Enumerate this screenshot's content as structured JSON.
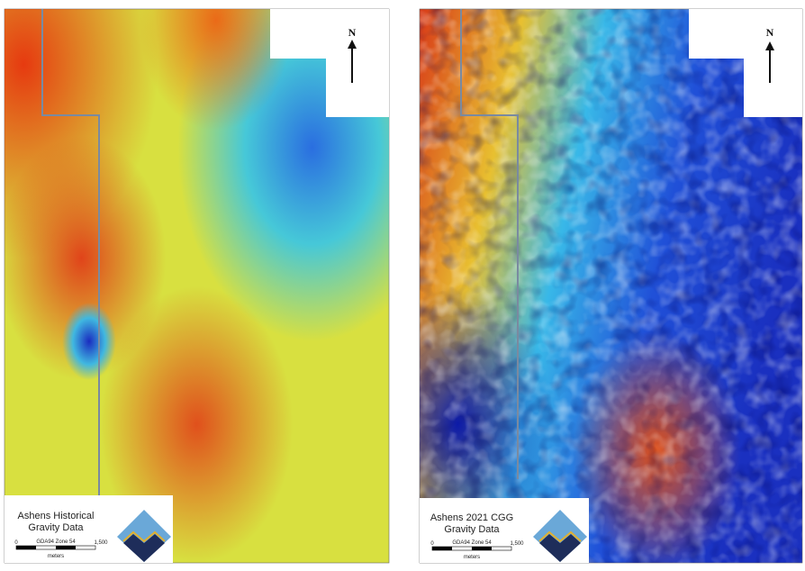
{
  "panels": [
    {
      "title_lines": [
        "Ashens Historical",
        "Gravity Data"
      ],
      "north": "N",
      "projection": "GDA94 Zone 54",
      "scale_start": "0",
      "scale_end": "1,500",
      "unit": "meters"
    },
    {
      "title_lines": [
        "Ashens 2021 CGG",
        "Gravity Data"
      ],
      "north": "N",
      "projection": "GDA94 Zone 54",
      "scale_start": "0",
      "scale_end": "1,500",
      "unit": "meters"
    }
  ]
}
